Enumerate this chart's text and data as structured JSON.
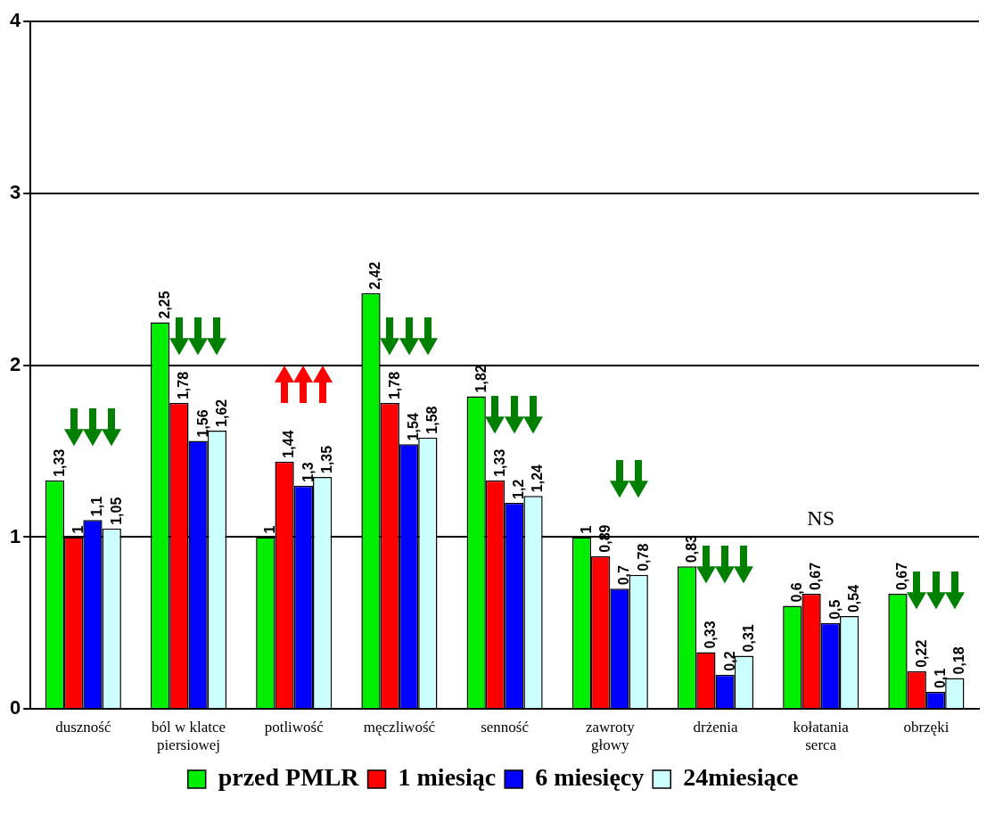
{
  "chart_data": {
    "type": "bar",
    "categories": [
      "duszność",
      "ból w klatce piersiowej",
      "potliwość",
      "męczliwość",
      "senność",
      "zawroty głowy",
      "drżenia",
      "kołatania serca",
      "obrzęki"
    ],
    "series": [
      {
        "name": "przed PMLR",
        "color": "#00ee00",
        "values": [
          1.33,
          2.25,
          1,
          2.42,
          1.82,
          1,
          0.83,
          0.6,
          0.67
        ],
        "value_labels": [
          "1,33",
          "2,25",
          "1",
          "2,42",
          "1,82",
          "1",
          "0,83",
          "0,6",
          "0,67"
        ]
      },
      {
        "name": "1 miesiąc",
        "color": "#ff0000",
        "values": [
          1,
          1.78,
          1.44,
          1.78,
          1.33,
          0.89,
          0.33,
          0.67,
          0.22
        ],
        "value_labels": [
          "1",
          "1,78",
          "1,44",
          "1,78",
          "1,33",
          "0,89",
          "0,33",
          "0,67",
          "0,22"
        ]
      },
      {
        "name": "6 miesięcy",
        "color": "#0000ff",
        "values": [
          1.1,
          1.56,
          1.3,
          1.54,
          1.2,
          0.7,
          0.2,
          0.5,
          0.1
        ],
        "value_labels": [
          "1,1",
          "1,56",
          "1,3",
          "1,54",
          "1,2",
          "0,7",
          "0,2",
          "0,5",
          "0,1"
        ]
      },
      {
        "name": "24miesiące",
        "color": "#ccffff",
        "values": [
          1.05,
          1.62,
          1.35,
          1.58,
          1.24,
          0.78,
          0.31,
          0.54,
          0.18
        ],
        "value_labels": [
          "1,05",
          "1,62",
          "1,35",
          "1,58",
          "1,24",
          "0,78",
          "0,31",
          "0,54",
          "0,18"
        ]
      }
    ],
    "ylim": [
      0,
      4
    ],
    "yticks": [
      0,
      1,
      2,
      3,
      4
    ],
    "grid": "y",
    "legend": "bottom",
    "annotations": [
      "NS"
    ]
  }
}
